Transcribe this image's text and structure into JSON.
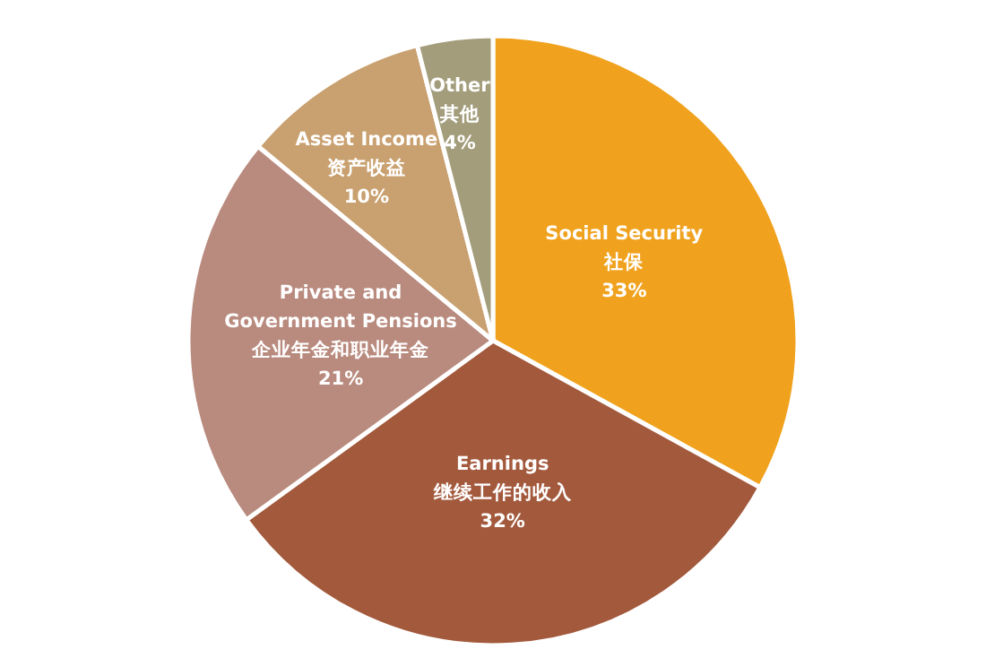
{
  "chart_data": {
    "type": "pie",
    "categories": [
      "Social Security\n社保",
      "Earnings\n继续工作的收入",
      "Private and\nGovernment Pensions\n企业年金和职业年金",
      "Asset Income\n资产收益",
      "Other\n其他"
    ],
    "values": [
      33,
      32,
      21,
      10,
      4
    ],
    "colors": [
      "#f0a21e",
      "#a3593c",
      "#b98a7e",
      "#c9a06f",
      "#a39d7c"
    ],
    "value_labels": [
      "33%",
      "32%",
      "21%",
      "10%",
      "4%"
    ]
  }
}
